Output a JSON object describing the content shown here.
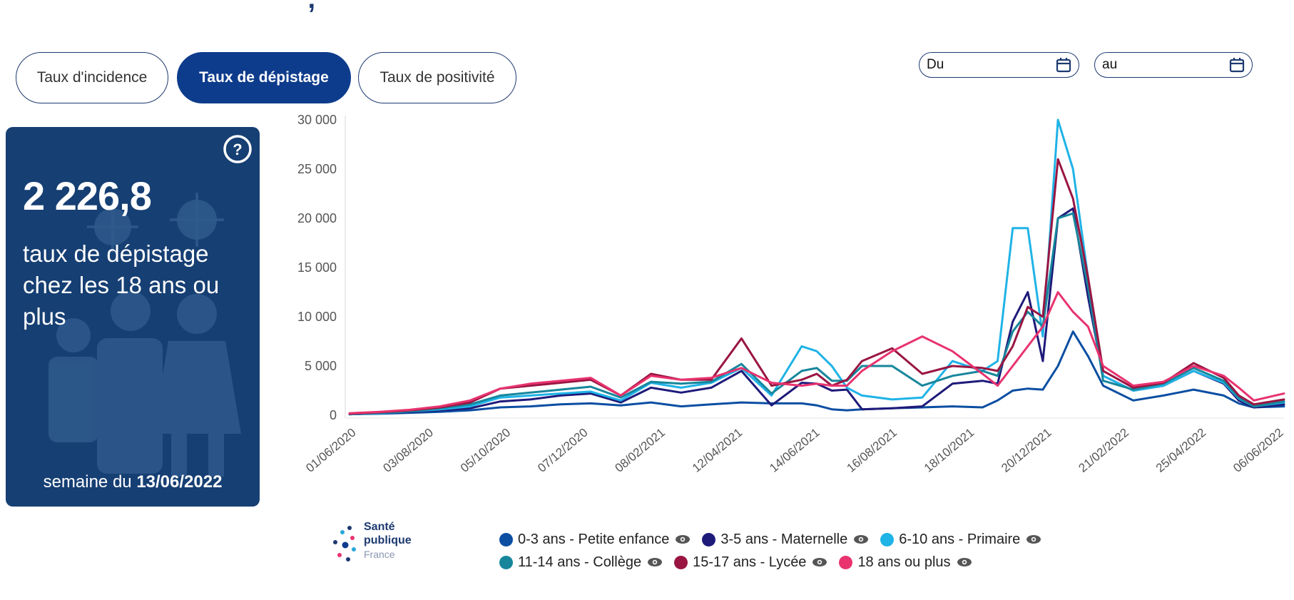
{
  "tabs": [
    {
      "label": "Taux d'incidence",
      "active": false
    },
    {
      "label": "Taux de dépistage",
      "active": true
    },
    {
      "label": "Taux de positivité",
      "active": false
    }
  ],
  "date_filter": {
    "from_label": "Du",
    "to_label": "au"
  },
  "kpi": {
    "value": "2 226,8",
    "description": "taux de dépistage chez les 18 ans ou plus",
    "week_prefix": "semaine du ",
    "week_date": "13/06/2022"
  },
  "logo": {
    "line1": "Santé",
    "line2": "publique",
    "line3": "France"
  },
  "colors": {
    "accent": "#0e3c8c",
    "panel": "#163f73"
  },
  "chart_data": {
    "type": "line",
    "yticks": [
      "30 000",
      "25 000",
      "20 000",
      "15 000",
      "10 000",
      "5 000",
      "0"
    ],
    "ylim": [
      0,
      30000
    ],
    "xtick_labels": [
      "01/06/2020",
      "03/08/2020",
      "05/10/2020",
      "07/12/2020",
      "08/02/2021",
      "12/04/2021",
      "14/06/2021",
      "16/08/2021",
      "18/10/2021",
      "20/12/2021",
      "21/02/2022",
      "25/04/2022",
      "06/06/2022"
    ],
    "x_weeks": [
      0,
      4,
      8,
      12,
      16,
      20,
      24,
      28,
      32,
      36,
      40,
      44,
      48,
      52,
      56,
      60,
      62,
      64,
      66,
      68,
      72,
      76,
      80,
      84,
      86,
      88,
      90,
      92,
      94,
      96,
      98,
      100,
      104,
      108,
      112,
      116,
      118,
      120,
      124
    ],
    "x_note": "week offsets from 01/06/2020",
    "series": [
      {
        "name": "0-3 ans - Petite enfance",
        "color": "#0b4ea2",
        "values": [
          100,
          150,
          250,
          350,
          500,
          800,
          900,
          1100,
          1200,
          1000,
          1300,
          900,
          1100,
          1300,
          1200,
          1200,
          1000,
          600,
          500,
          600,
          700,
          800,
          900,
          800,
          1500,
          2500,
          2700,
          2600,
          5000,
          8500,
          6000,
          3000,
          1500,
          2000,
          2600,
          2000,
          1200,
          800,
          900
        ]
      },
      {
        "name": "3-5 ans - Maternelle",
        "color": "#1e1a7a",
        "values": [
          100,
          200,
          350,
          500,
          700,
          1400,
          1600,
          2000,
          2200,
          1300,
          2800,
          2300,
          2800,
          4500,
          1000,
          3300,
          3200,
          2500,
          2600,
          600,
          700,
          900,
          3200,
          3500,
          3200,
          9500,
          12500,
          5500,
          20000,
          21000,
          12000,
          4000,
          2500,
          3000,
          4500,
          3200,
          1500,
          800,
          1100
        ]
      },
      {
        "name": "6-10 ans - Primaire",
        "color": "#1fb3e6",
        "values": [
          100,
          200,
          400,
          600,
          900,
          1800,
          2000,
          2200,
          2400,
          1500,
          3300,
          2800,
          3300,
          4800,
          2000,
          7000,
          6500,
          5000,
          2800,
          2000,
          1600,
          1800,
          5500,
          4500,
          5500,
          19000,
          19000,
          8000,
          30000,
          25000,
          14000,
          4000,
          2500,
          3000,
          4500,
          3300,
          1700,
          900,
          1300
        ]
      },
      {
        "name": "11-14 ans - Collège",
        "color": "#17869c",
        "values": [
          100,
          250,
          400,
          700,
          1100,
          2000,
          2300,
          2600,
          2900,
          1800,
          3400,
          3200,
          3400,
          5200,
          2200,
          4500,
          4800,
          3500,
          3500,
          5000,
          5000,
          3000,
          4000,
          4500,
          4000,
          8500,
          10500,
          9000,
          20000,
          20500,
          13000,
          3500,
          2600,
          3200,
          4800,
          3500,
          1800,
          900,
          1400
        ]
      },
      {
        "name": "15-17 ans - Lycée",
        "color": "#991542",
        "values": [
          150,
          300,
          500,
          800,
          1300,
          2700,
          3000,
          3300,
          3600,
          2000,
          4200,
          3600,
          3600,
          7800,
          3000,
          3600,
          4200,
          3000,
          3600,
          5500,
          6800,
          4200,
          5000,
          4800,
          4500,
          7000,
          11000,
          10000,
          26000,
          22000,
          14000,
          4500,
          2800,
          3300,
          5300,
          3800,
          2000,
          1100,
          1600
        ]
      },
      {
        "name": "18 ans ou plus",
        "color": "#e8336e",
        "values": [
          200,
          350,
          550,
          900,
          1500,
          2700,
          3200,
          3500,
          3800,
          2000,
          4000,
          3600,
          3800,
          4800,
          3300,
          3000,
          3200,
          3000,
          3000,
          4500,
          6500,
          8000,
          6500,
          4200,
          3000,
          5000,
          7000,
          9000,
          12500,
          10500,
          9000,
          5000,
          3000,
          3400,
          5000,
          4000,
          2800,
          1500,
          2200
        ]
      }
    ]
  }
}
